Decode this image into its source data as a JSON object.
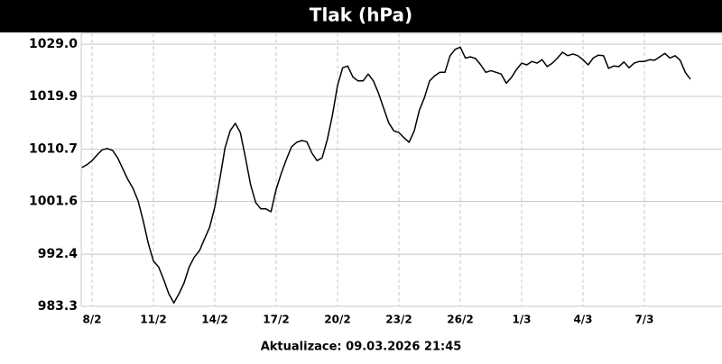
{
  "chart_data": {
    "type": "line",
    "title": "Tlak (hPa)",
    "footer": "Aktualizace: 09.03.2026 21:45",
    "color": "#000000",
    "grid": true,
    "xlim": [
      7.47,
      37.47
    ],
    "ylim": [
      983.3,
      1030.9
    ],
    "xticks": [
      {
        "value": 8,
        "label": "8/2"
      },
      {
        "value": 11,
        "label": "11/2"
      },
      {
        "value": 14,
        "label": "14/2"
      },
      {
        "value": 17,
        "label": "17/2"
      },
      {
        "value": 20,
        "label": "20/2"
      },
      {
        "value": 23,
        "label": "23/2"
      },
      {
        "value": 26,
        "label": "26/2"
      },
      {
        "value": 29,
        "label": "1/3"
      },
      {
        "value": 32,
        "label": "4/3"
      },
      {
        "value": 35,
        "label": "7/3"
      }
    ],
    "yticks": [
      983.3,
      992.4,
      1001.6,
      1010.7,
      1019.9,
      {
        "value": 1029,
        "label": "1029.0"
      }
    ],
    "x": [
      7.5,
      7.75,
      8,
      8.25,
      8.5,
      8.75,
      9,
      9.25,
      9.5,
      9.75,
      10,
      10.25,
      10.5,
      10.75,
      11,
      11.25,
      11.5,
      11.75,
      12,
      12.25,
      12.5,
      12.75,
      13,
      13.25,
      13.5,
      13.75,
      14,
      14.25,
      14.5,
      14.75,
      15,
      15.25,
      15.5,
      15.75,
      16,
      16.25,
      16.5,
      16.75,
      17,
      17.25,
      17.5,
      17.75,
      18,
      18.25,
      18.5,
      18.75,
      19,
      19.25,
      19.5,
      19.75,
      20,
      20.25,
      20.5,
      20.75,
      21,
      21.25,
      21.5,
      21.75,
      22,
      22.25,
      22.5,
      22.75,
      23,
      23.25,
      23.5,
      23.75,
      24,
      24.25,
      24.5,
      24.75,
      25,
      25.25,
      25.5,
      25.75,
      26,
      26.25,
      26.5,
      26.75,
      27,
      27.25,
      27.5,
      27.75,
      28,
      28.25,
      28.5,
      28.75,
      29,
      29.25,
      29.5,
      29.75,
      30,
      30.25,
      30.5,
      30.75,
      31,
      31.25,
      31.5,
      31.75,
      32,
      32.25,
      32.5,
      32.75,
      33,
      33.25,
      33.5,
      33.75,
      34,
      34.25,
      34.5,
      34.75,
      35,
      35.25,
      35.5,
      35.75,
      36,
      36.25,
      36.5,
      36.75,
      37,
      37.25
    ],
    "values": [
      1007.5,
      1008.0,
      1008.7,
      1009.7,
      1010.6,
      1010.8,
      1010.5,
      1009.2,
      1007.3,
      1005.4,
      1003.9,
      1001.7,
      998.2,
      994.3,
      991.2,
      990.2,
      988.0,
      985.5,
      983.9,
      985.5,
      987.4,
      990.2,
      991.9,
      993.0,
      995.1,
      997.1,
      1000.6,
      1005.6,
      1010.9,
      1013.9,
      1015.2,
      1013.6,
      1009.2,
      1004.5,
      1001.4,
      1000.3,
      1000.3,
      999.8,
      1003.7,
      1006.5,
      1008.9,
      1011.1,
      1011.9,
      1012.2,
      1012.0,
      1010.0,
      1008.7,
      1009.2,
      1012.4,
      1016.6,
      1021.8,
      1024.9,
      1025.2,
      1023.3,
      1022.6,
      1022.6,
      1023.8,
      1022.6,
      1020.5,
      1017.9,
      1015.3,
      1013.9,
      1013.6,
      1012.7,
      1011.9,
      1013.9,
      1017.5,
      1019.7,
      1022.6,
      1023.5,
      1024.1,
      1024.1,
      1027.0,
      1028.1,
      1028.5,
      1026.6,
      1026.8,
      1026.5,
      1025.4,
      1024.1,
      1024.4,
      1024.1,
      1023.8,
      1022.2,
      1023.2,
      1024.6,
      1025.7,
      1025.4,
      1026.0,
      1025.7,
      1026.3,
      1025.1,
      1025.7,
      1026.6,
      1027.6,
      1027.0,
      1027.3,
      1027.0,
      1026.3,
      1025.4,
      1026.6,
      1027.1,
      1027.0,
      1024.8,
      1025.2,
      1025.1,
      1025.9,
      1024.9,
      1025.7,
      1026.0,
      1026.0,
      1026.3,
      1026.2,
      1026.8,
      1027.4,
      1026.6,
      1027.0,
      1026.2,
      1024.1,
      1022.9
    ]
  }
}
